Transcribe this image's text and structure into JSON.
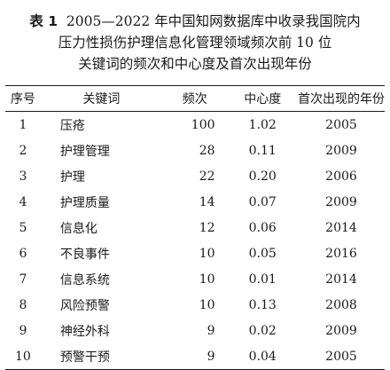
{
  "caption": {
    "label": "表 1",
    "line1": "2005—2022 年中国知网数据库中收录我国院内",
    "line2": "压力性损伤护理信息化管理领域频次前 10 位",
    "line3": "关键词的频次和中心度及首次出现年份"
  },
  "table": {
    "headers": [
      "序号",
      "关键词",
      "频次",
      "中心度",
      "首次出现的年份"
    ],
    "rows": [
      {
        "no": "1",
        "keyword": "压疮",
        "freq": "100",
        "centrality": "1.02",
        "year": "2005"
      },
      {
        "no": "2",
        "keyword": "护理管理",
        "freq": "28",
        "centrality": "0.11",
        "year": "2009"
      },
      {
        "no": "3",
        "keyword": "护理",
        "freq": "22",
        "centrality": "0.20",
        "year": "2006"
      },
      {
        "no": "4",
        "keyword": "护理质量",
        "freq": "14",
        "centrality": "0.07",
        "year": "2009"
      },
      {
        "no": "5",
        "keyword": "信息化",
        "freq": "12",
        "centrality": "0.06",
        "year": "2014"
      },
      {
        "no": "6",
        "keyword": "不良事件",
        "freq": "10",
        "centrality": "0.05",
        "year": "2016"
      },
      {
        "no": "7",
        "keyword": "信息系统",
        "freq": "10",
        "centrality": "0.01",
        "year": "2014"
      },
      {
        "no": "8",
        "keyword": "风险预警",
        "freq": "10",
        "centrality": "0.13",
        "year": "2008"
      },
      {
        "no": "9",
        "keyword": "神经外科",
        "freq": "9",
        "centrality": "0.02",
        "year": "2009"
      },
      {
        "no": "10",
        "keyword": "预警干预",
        "freq": "9",
        "centrality": "0.04",
        "year": "2005"
      }
    ]
  }
}
